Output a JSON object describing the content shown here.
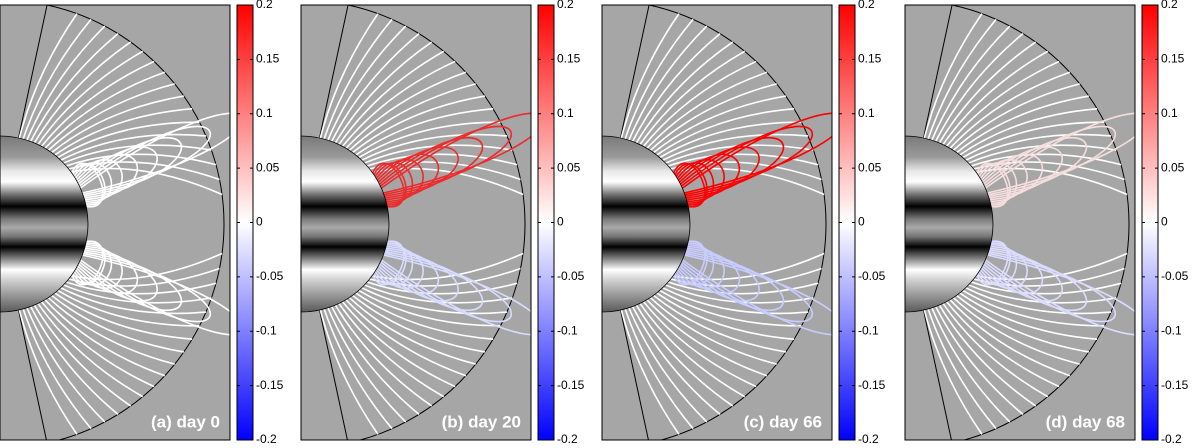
{
  "chart_data": [
    {
      "type": "field-lines",
      "annotation": "(a) day 0",
      "clim": [
        -0.2,
        0.2
      ],
      "cticks": [
        0.2,
        0.15,
        0.1,
        0.05,
        0,
        -0.05,
        -0.1,
        -0.15,
        -0.2
      ],
      "colormap": [
        "#0000ff",
        "#ffffff",
        "#ff0000"
      ],
      "upper_loop_color": "#ffffff",
      "lower_loop_color": "#ffffff"
    },
    {
      "type": "field-lines",
      "annotation": "(b) day 20",
      "clim": [
        -0.2,
        0.2
      ],
      "cticks": [
        0.2,
        0.15,
        0.1,
        0.05,
        0,
        -0.05,
        -0.1,
        -0.15,
        -0.2
      ],
      "colormap": [
        "#0000ff",
        "#ffffff",
        "#ff0000"
      ],
      "upper_loop_color": "#ee2a2a",
      "lower_loop_color": "#d8dcff"
    },
    {
      "type": "field-lines",
      "annotation": "(c) day 66",
      "clim": [
        -0.2,
        0.2
      ],
      "cticks": [
        0.2,
        0.15,
        0.1,
        0.05,
        0,
        -0.05,
        -0.1,
        -0.15,
        -0.2
      ],
      "colormap": [
        "#0000ff",
        "#ffffff",
        "#ff0000"
      ],
      "upper_loop_color": "#ff0000",
      "lower_loop_color": "#c8ccff"
    },
    {
      "type": "field-lines",
      "annotation": "(d) day 68",
      "clim": [
        -0.2,
        0.2
      ],
      "cticks": [
        0.2,
        0.15,
        0.1,
        0.05,
        0,
        -0.05,
        -0.1,
        -0.15,
        -0.2
      ],
      "colormap": [
        "#0000ff",
        "#ffffff",
        "#ff0000"
      ],
      "upper_loop_color": "#f6dede",
      "lower_loop_color": "#dcdcff"
    }
  ]
}
